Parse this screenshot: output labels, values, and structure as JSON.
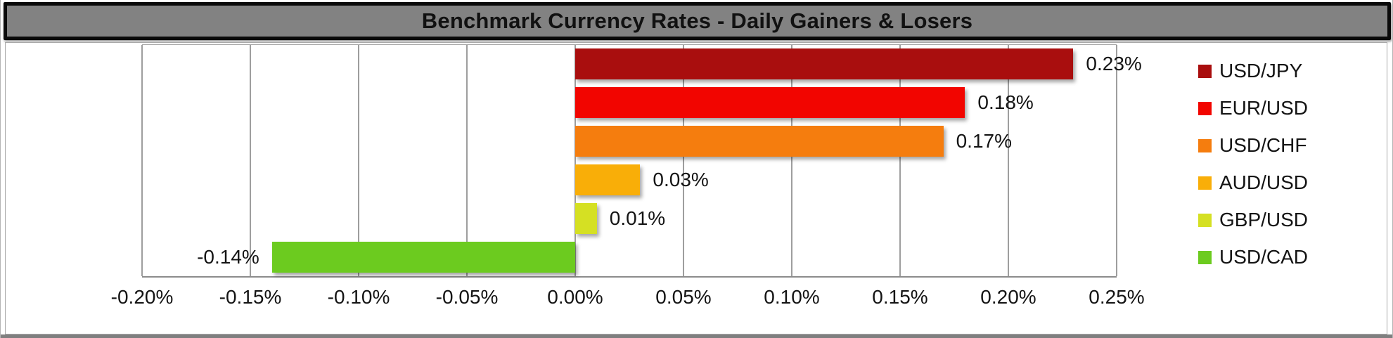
{
  "title": "Benchmark Currency Rates - Daily Gainers & Losers",
  "chart_data": {
    "type": "bar",
    "orientation": "horizontal",
    "title": "Benchmark Currency Rates - Daily Gainers & Losers",
    "categories": [
      "USD/JPY",
      "EUR/USD",
      "USD/CHF",
      "AUD/USD",
      "GBP/USD",
      "USD/CAD"
    ],
    "values": [
      0.23,
      0.18,
      0.17,
      0.03,
      0.01,
      -0.14
    ],
    "data_labels": [
      "0.23%",
      "0.18%",
      "0.17%",
      "0.03%",
      "0.01%",
      "-0.14%"
    ],
    "colors": [
      "#A90E0E",
      "#F20500",
      "#F57D0E",
      "#F9AE08",
      "#D5E023",
      "#6CCB1F"
    ],
    "xlim": [
      -0.2,
      0.25
    ],
    "x_ticks": [
      -0.2,
      -0.15,
      -0.1,
      -0.05,
      0.0,
      0.05,
      0.1,
      0.15,
      0.2,
      0.25
    ],
    "x_tick_labels": [
      "-0.20%",
      "-0.15%",
      "-0.10%",
      "-0.05%",
      "0.00%",
      "0.05%",
      "0.10%",
      "0.15%",
      "0.20%",
      "0.25%"
    ],
    "xlabel": "",
    "ylabel": "",
    "grid": true,
    "legend_position": "right",
    "background": "#FFFFFF",
    "gridline_color": "#9E9E9E",
    "title_bar": {
      "fill": "#828282",
      "border": "#000000",
      "text_color": "#111111"
    }
  }
}
